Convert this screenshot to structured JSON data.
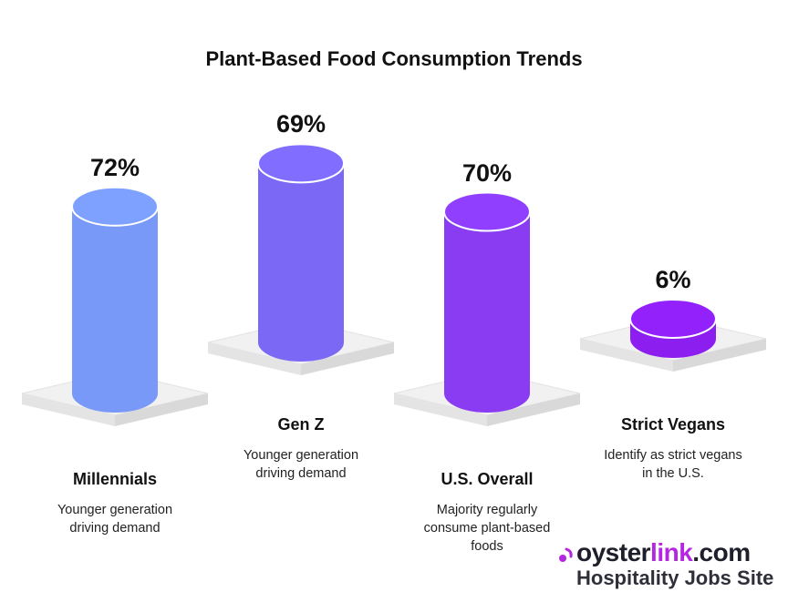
{
  "chart_data": {
    "type": "bar",
    "title": "Plant-Based Food Consumption Trends",
    "categories": [
      "Millennials",
      "Gen Z",
      "U.S. Overall",
      "Strict Vegans"
    ],
    "values": [
      72,
      69,
      70,
      6
    ],
    "value_labels": [
      "72%",
      "69%",
      "70%",
      "6%"
    ],
    "descriptions": [
      [
        "Younger generation",
        "driving demand"
      ],
      [
        "Younger generation",
        "driving demand"
      ],
      [
        "Majority regularly",
        "consume plant-based",
        "foods"
      ],
      [
        "Identify as strict vegans",
        "in the U.S."
      ]
    ],
    "colors": [
      "#7899f7",
      "#7b68f5",
      "#8a3cf2",
      "#8c1ff0"
    ],
    "unit": "%",
    "grid": false,
    "legend": "none"
  },
  "brand": {
    "logo_text_dark": "oyster",
    "logo_text_accent": "link",
    "logo_text_suffix": ".com",
    "tagline": "Hospitality Jobs Site",
    "accent_color": "#b526e0",
    "logo_icon": "oyster-dot-icon"
  }
}
